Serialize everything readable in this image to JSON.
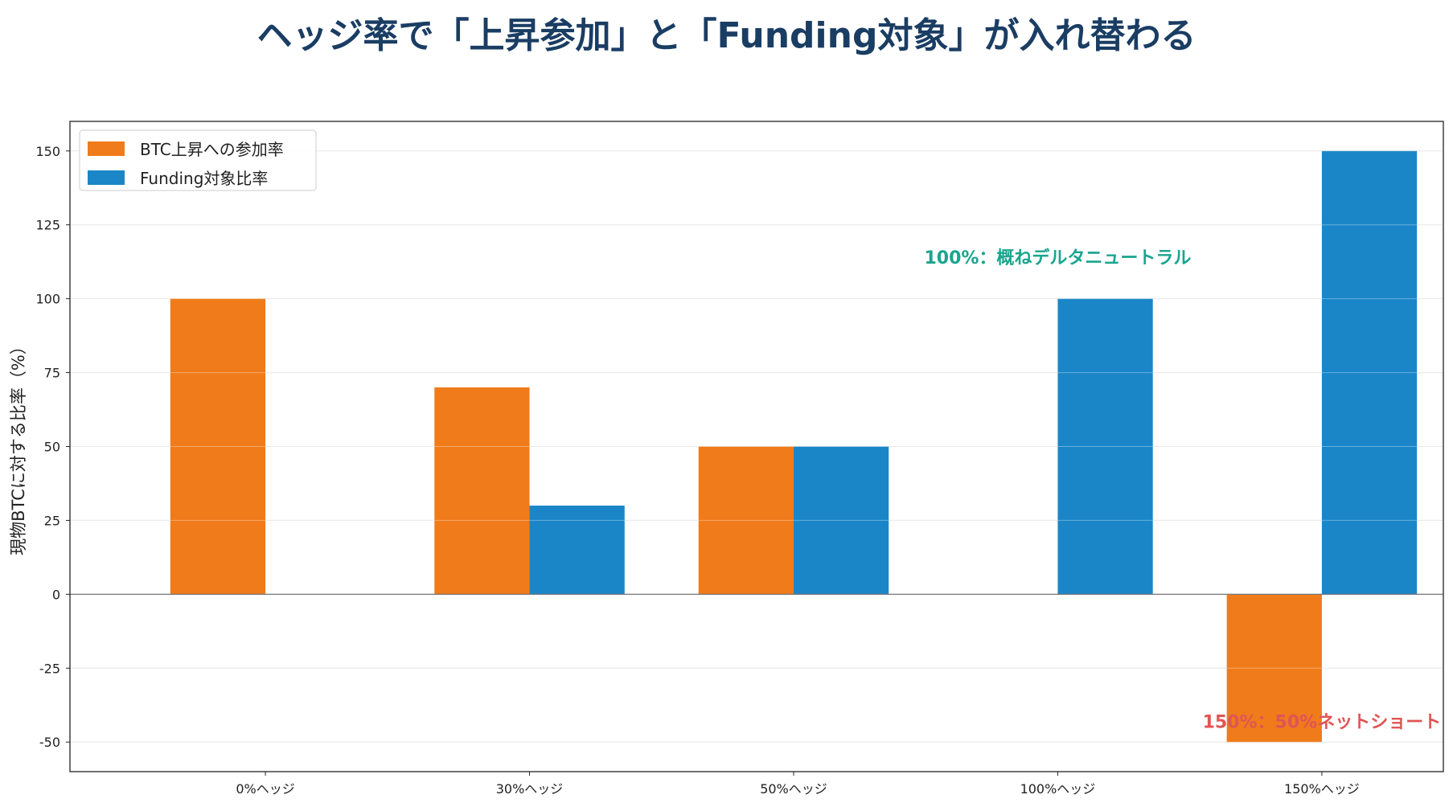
{
  "chart_data": {
    "type": "bar",
    "title": "ヘッジ率で「上昇参加」と「Funding対象」が入れ替わる",
    "xlabel": "",
    "ylabel": "現物BTCに対する比率（%）",
    "categories": [
      "0%ヘッジ",
      "30%ヘッジ",
      "50%ヘッジ",
      "100%ヘッジ",
      "150%ヘッジ"
    ],
    "series": [
      {
        "name": "BTC上昇への参加率",
        "color": "#f07b1a",
        "values": [
          100,
          70,
          50,
          0,
          -50
        ]
      },
      {
        "name": "Funding対象比率",
        "color": "#1a86c8",
        "values": [
          0,
          30,
          50,
          100,
          150
        ]
      }
    ],
    "ylim": [
      -60,
      160
    ],
    "yticks": [
      -50,
      -25,
      0,
      25,
      50,
      75,
      100,
      125,
      150
    ],
    "grid": true,
    "legend": "top-left",
    "annotations": [
      {
        "text": "100%：概ねデルタニュートラル",
        "x": 3,
        "y": 114,
        "color": "#1aa58e"
      },
      {
        "text": "150%：50%ネットショート",
        "x": 4,
        "y": -43,
        "color": "#e05555"
      }
    ]
  }
}
